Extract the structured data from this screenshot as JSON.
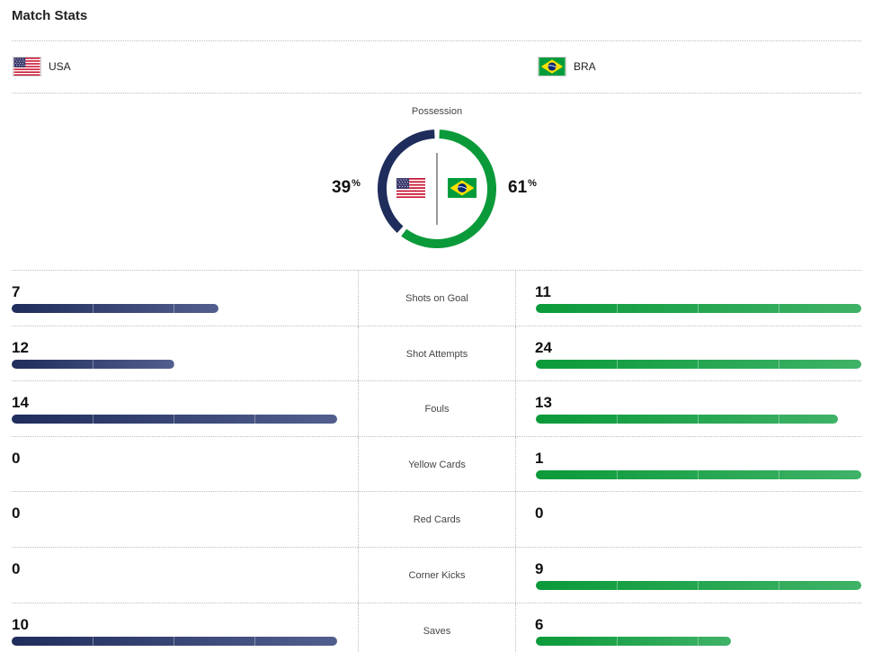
{
  "title": "Match Stats",
  "teams": {
    "home": {
      "abbr": "USA",
      "color": "#1f2d5c",
      "flag_icon": "usa-flag-icon"
    },
    "away": {
      "abbr": "BRA",
      "color": "#0b9a3a",
      "flag_icon": "brazil-flag-icon"
    }
  },
  "possession": {
    "label": "Possession",
    "home_value": "39",
    "away_value": "61",
    "unit": "%"
  },
  "stats": [
    {
      "label": "Shots on Goal",
      "home": 7,
      "away": 11
    },
    {
      "label": "Shot Attempts",
      "home": 12,
      "away": 24
    },
    {
      "label": "Fouls",
      "home": 14,
      "away": 13
    },
    {
      "label": "Yellow Cards",
      "home": 0,
      "away": 1
    },
    {
      "label": "Red Cards",
      "home": 0,
      "away": 0
    },
    {
      "label": "Corner Kicks",
      "home": 0,
      "away": 9
    },
    {
      "label": "Saves",
      "home": 10,
      "away": 6
    }
  ]
}
